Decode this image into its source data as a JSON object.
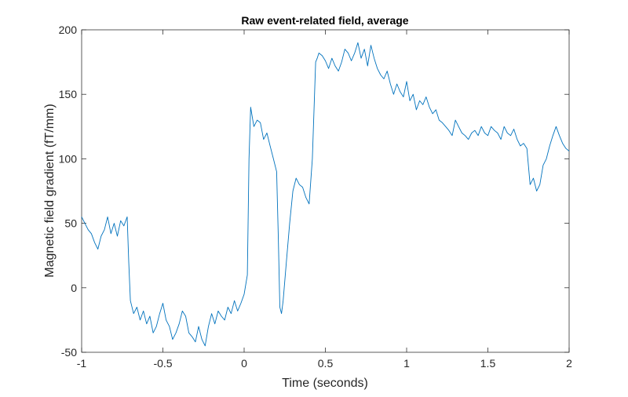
{
  "chart_data": {
    "type": "line",
    "title": "Raw event-related field, average",
    "xlabel": "Time (seconds)",
    "ylabel": "Magnetic field gradient (fT/mm)",
    "xlim": [
      -1,
      2
    ],
    "ylim": [
      -50,
      200
    ],
    "xticks": [
      -1,
      -0.5,
      0,
      0.5,
      1,
      1.5,
      2
    ],
    "xtick_labels": [
      "-1",
      "-0.5",
      "0",
      "0.5",
      "1",
      "1.5",
      "2"
    ],
    "yticks": [
      -50,
      0,
      50,
      100,
      150,
      200
    ],
    "ytick_labels": [
      "-50",
      "0",
      "50",
      "100",
      "150",
      "200"
    ],
    "grid": false,
    "line_color": "#0072BD",
    "series": [
      {
        "x": [
          -1.0,
          -0.98,
          -0.96,
          -0.94,
          -0.92,
          -0.9,
          -0.88,
          -0.86,
          -0.84,
          -0.82,
          -0.8,
          -0.78,
          -0.76,
          -0.74,
          -0.72,
          -0.71,
          -0.7,
          -0.68,
          -0.66,
          -0.64,
          -0.62,
          -0.6,
          -0.58,
          -0.56,
          -0.54,
          -0.52,
          -0.5,
          -0.48,
          -0.46,
          -0.44,
          -0.42,
          -0.4,
          -0.38,
          -0.36,
          -0.34,
          -0.32,
          -0.3,
          -0.28,
          -0.26,
          -0.24,
          -0.22,
          -0.2,
          -0.18,
          -0.16,
          -0.14,
          -0.12,
          -0.1,
          -0.08,
          -0.06,
          -0.04,
          -0.02,
          0.0,
          0.02,
          0.03,
          0.04,
          0.06,
          0.08,
          0.1,
          0.12,
          0.14,
          0.16,
          0.18,
          0.2,
          0.21,
          0.22,
          0.23,
          0.24,
          0.26,
          0.28,
          0.3,
          0.32,
          0.34,
          0.36,
          0.38,
          0.4,
          0.42,
          0.44,
          0.45,
          0.46,
          0.48,
          0.5,
          0.52,
          0.54,
          0.56,
          0.58,
          0.6,
          0.62,
          0.64,
          0.66,
          0.68,
          0.7,
          0.72,
          0.74,
          0.76,
          0.78,
          0.8,
          0.82,
          0.84,
          0.86,
          0.88,
          0.9,
          0.92,
          0.94,
          0.96,
          0.98,
          1.0,
          1.02,
          1.04,
          1.06,
          1.08,
          1.1,
          1.12,
          1.14,
          1.16,
          1.18,
          1.2,
          1.22,
          1.24,
          1.26,
          1.28,
          1.3,
          1.32,
          1.34,
          1.36,
          1.38,
          1.4,
          1.42,
          1.44,
          1.46,
          1.48,
          1.5,
          1.52,
          1.54,
          1.56,
          1.58,
          1.6,
          1.62,
          1.64,
          1.66,
          1.68,
          1.7,
          1.72,
          1.74,
          1.76,
          1.78,
          1.8,
          1.82,
          1.84,
          1.86,
          1.88,
          1.9,
          1.92,
          1.94,
          1.96,
          1.98,
          2.0
        ],
        "y": [
          55,
          50,
          45,
          42,
          35,
          30,
          40,
          45,
          55,
          42,
          50,
          40,
          52,
          48,
          55,
          20,
          -10,
          -20,
          -15,
          -25,
          -18,
          -28,
          -22,
          -35,
          -30,
          -20,
          -12,
          -25,
          -30,
          -40,
          -35,
          -28,
          -18,
          -22,
          -35,
          -38,
          -42,
          -30,
          -40,
          -45,
          -30,
          -20,
          -28,
          -18,
          -22,
          -25,
          -15,
          -20,
          -10,
          -18,
          -12,
          -5,
          10,
          100,
          140,
          125,
          130,
          128,
          115,
          120,
          110,
          100,
          90,
          40,
          -15,
          -20,
          -10,
          20,
          50,
          75,
          85,
          80,
          78,
          70,
          65,
          100,
          175,
          178,
          182,
          180,
          176,
          170,
          178,
          172,
          168,
          175,
          185,
          182,
          176,
          182,
          190,
          178,
          185,
          172,
          188,
          178,
          170,
          165,
          162,
          168,
          158,
          150,
          158,
          152,
          148,
          160,
          145,
          150,
          138,
          145,
          142,
          148,
          140,
          135,
          138,
          130,
          128,
          125,
          122,
          118,
          130,
          125,
          120,
          118,
          115,
          120,
          122,
          118,
          125,
          120,
          118,
          125,
          122,
          120,
          115,
          125,
          120,
          118,
          123,
          115,
          110,
          112,
          108,
          80,
          85,
          75,
          80,
          95,
          100,
          110,
          118,
          125,
          118,
          112,
          108,
          106
        ]
      }
    ]
  }
}
